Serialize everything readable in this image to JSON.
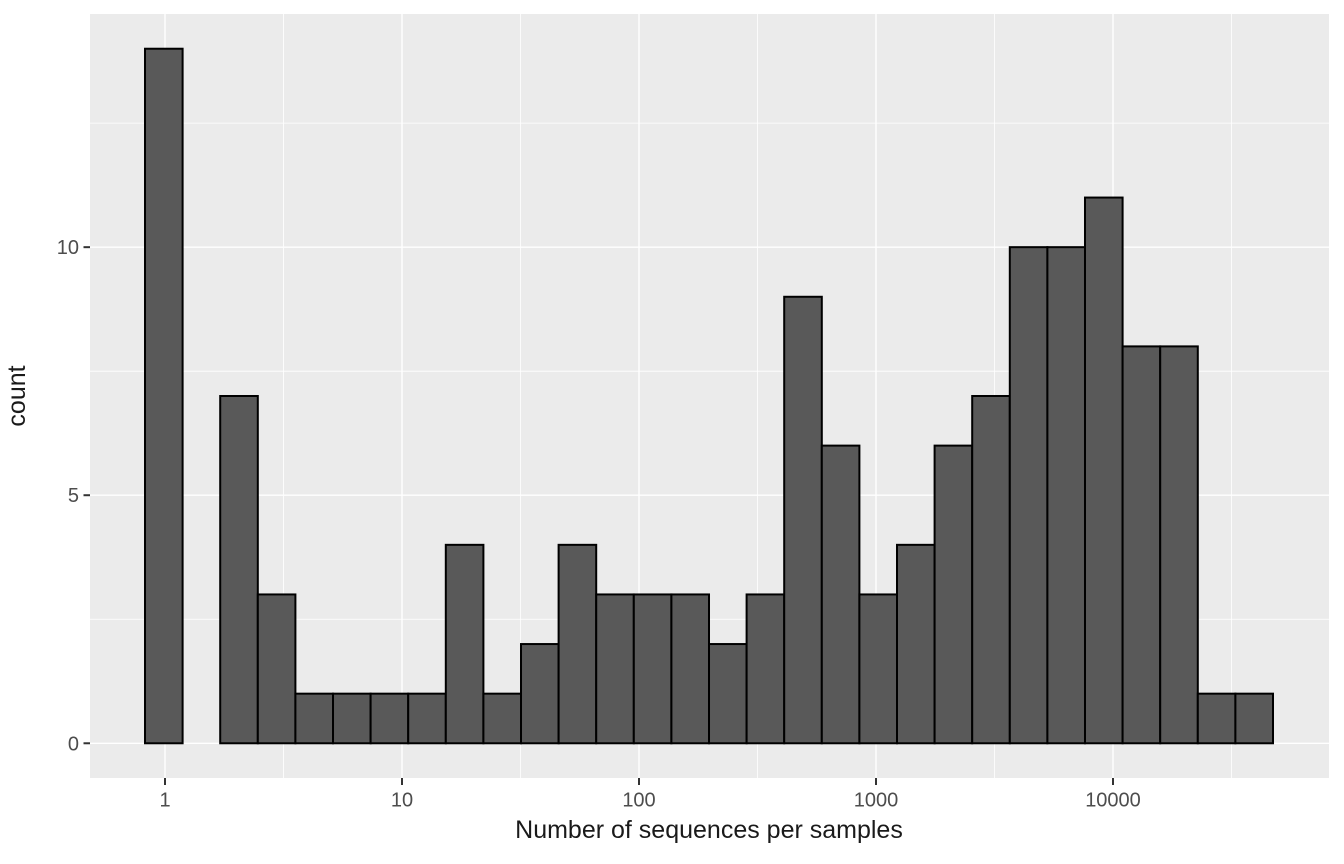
{
  "chart_data": {
    "type": "bar",
    "subtype": "histogram",
    "title": "",
    "xlabel": "Number of sequences per samples",
    "ylabel": "count",
    "x_scale": "log10",
    "grid": true,
    "legend_position": "none",
    "x_tick_values": [
      1,
      10,
      100,
      1000,
      10000
    ],
    "x_tick_labels": [
      "1",
      "10",
      "100",
      "1000",
      "10000"
    ],
    "y_tick_values": [
      0,
      5,
      10
    ],
    "y_tick_labels": [
      "0",
      "5",
      "10"
    ],
    "x_minor_breaks_log10": [
      0.5,
      1.5,
      2.5,
      3.5,
      4.5
    ],
    "y_minor_breaks": [
      2.5,
      7.5,
      12.5
    ],
    "x_log10_range": [
      -0.3165,
      4.9114
    ],
    "y_range": [
      -0.7,
      14.7
    ],
    "bins": {
      "log10_start": -0.0844,
      "log10_width": 0.15865,
      "counts": [
        14,
        0,
        7,
        3,
        1,
        1,
        1,
        1,
        4,
        1,
        2,
        4,
        3,
        3,
        3,
        2,
        3,
        9,
        6,
        3,
        4,
        6,
        7,
        10,
        10,
        11,
        8,
        8,
        1,
        1
      ]
    },
    "colors": {
      "page_bg": "#ffffff",
      "panel_bg": "#ebebeb",
      "grid": "#ffffff",
      "bar_fill": "#595959",
      "bar_stroke": "#000000",
      "tick_mark": "#333333",
      "tick_label": "#4d4d4d",
      "axis_title": "#1a1a1a"
    }
  }
}
